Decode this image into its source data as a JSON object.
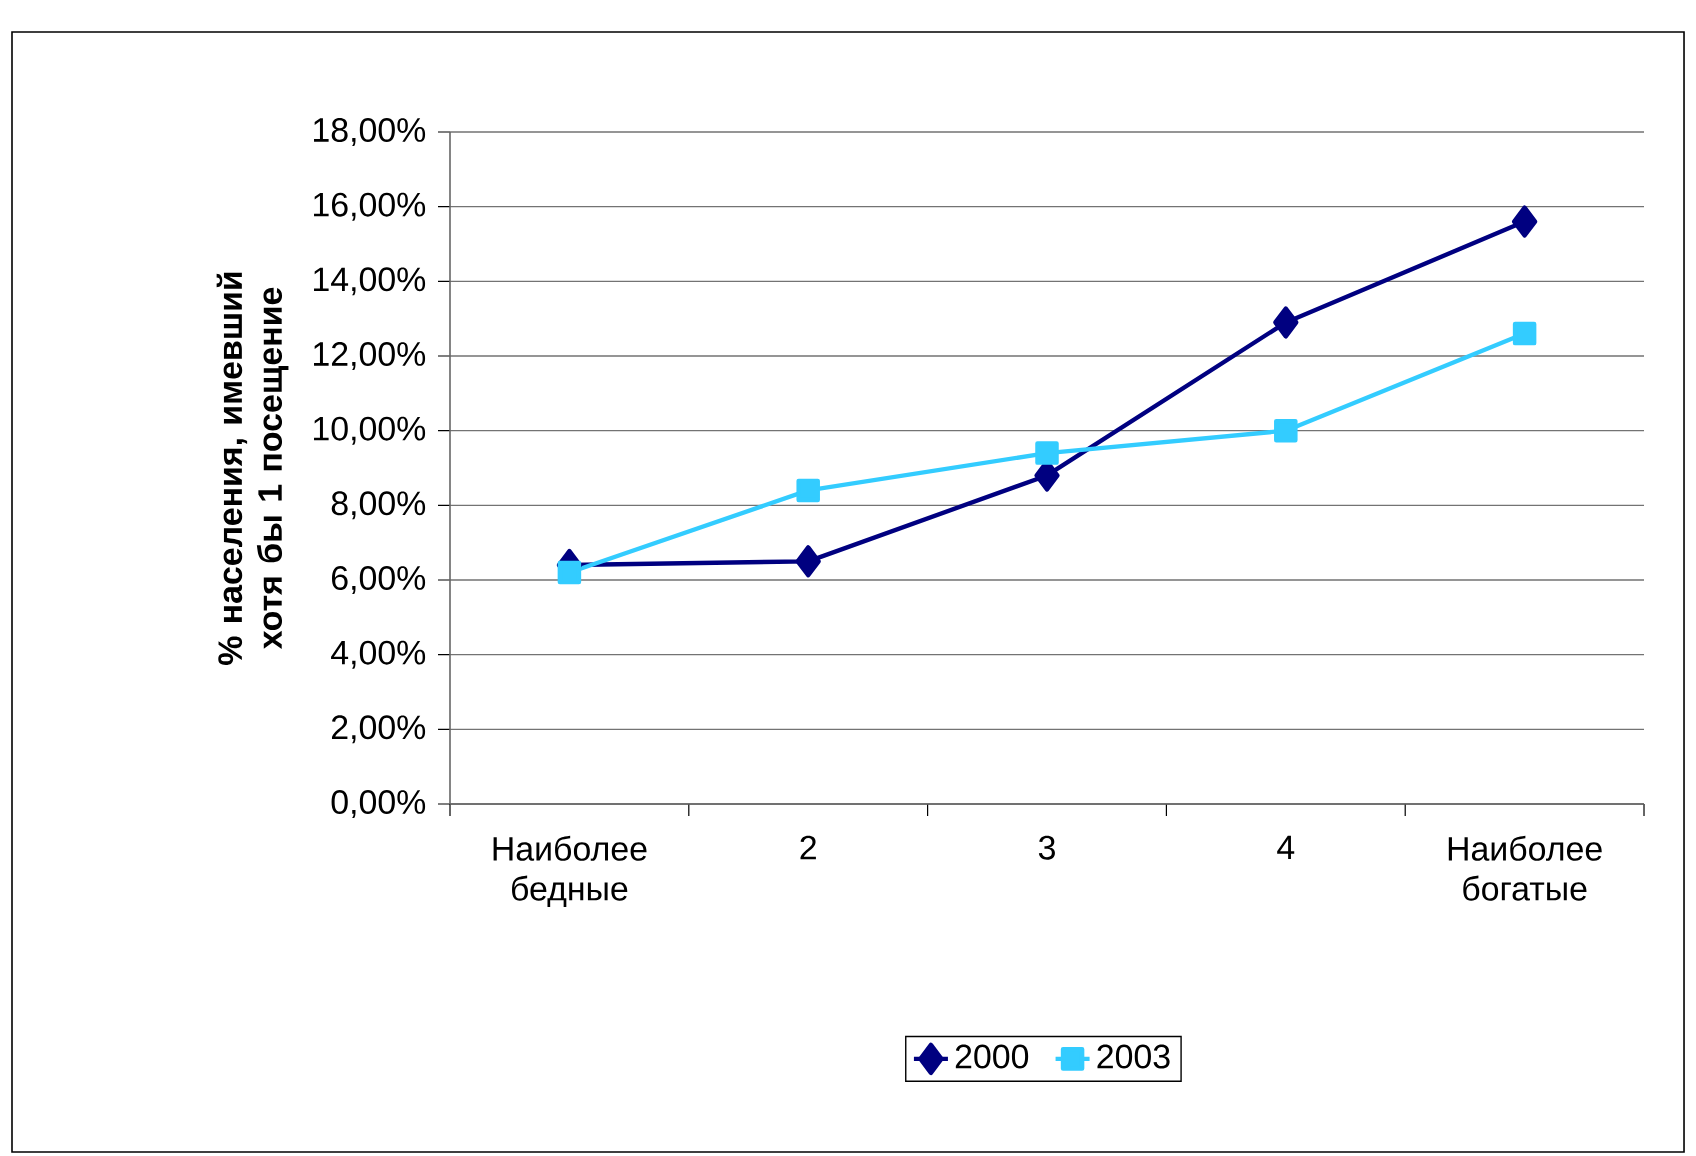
{
  "chart_data": {
    "type": "line",
    "ylabel": "% населения, имевший хотя бы 1 посещение",
    "categories": [
      "Наиболее бедные",
      "2",
      "3",
      "4",
      "Наиболее богатые"
    ],
    "series": [
      {
        "name": "2000",
        "color": "#000080",
        "marker": "diamond",
        "values": [
          6.4,
          6.5,
          8.8,
          12.9,
          15.6
        ]
      },
      {
        "name": "2003",
        "color": "#33ccff",
        "marker": "square",
        "values": [
          6.2,
          8.4,
          9.4,
          10.0,
          12.6
        ]
      }
    ],
    "ylim": [
      0,
      18
    ],
    "yticks": [
      {
        "value": 0,
        "label": "0,00%"
      },
      {
        "value": 2,
        "label": "2,00%"
      },
      {
        "value": 4,
        "label": "4,00%"
      },
      {
        "value": 6,
        "label": "6,00%"
      },
      {
        "value": 8,
        "label": "8,00%"
      },
      {
        "value": 10,
        "label": "10,00%"
      },
      {
        "value": 12,
        "label": "12,00%"
      },
      {
        "value": 14,
        "label": "14,00%"
      },
      {
        "value": 16,
        "label": "16,00%"
      },
      {
        "value": 18,
        "label": "18,00%"
      }
    ],
    "grid": "y",
    "legend": "bottom"
  }
}
